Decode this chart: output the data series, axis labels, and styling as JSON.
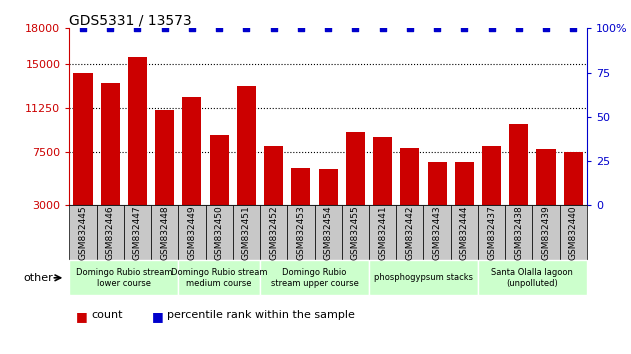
{
  "title": "GDS5331 / 13573",
  "categories": [
    "GSM832445",
    "GSM832446",
    "GSM832447",
    "GSM832448",
    "GSM832449",
    "GSM832450",
    "GSM832451",
    "GSM832452",
    "GSM832453",
    "GSM832454",
    "GSM832455",
    "GSM832441",
    "GSM832442",
    "GSM832443",
    "GSM832444",
    "GSM832437",
    "GSM832438",
    "GSM832439",
    "GSM832440"
  ],
  "bar_values": [
    14200,
    13400,
    15600,
    11100,
    12200,
    9000,
    13100,
    8000,
    6200,
    6100,
    9200,
    8800,
    7900,
    6700,
    6700,
    8000,
    9900,
    7800,
    7500
  ],
  "percentile_values": [
    100,
    100,
    100,
    100,
    100,
    100,
    100,
    100,
    100,
    100,
    100,
    100,
    100,
    100,
    100,
    100,
    100,
    100,
    100
  ],
  "ylim_left": [
    3000,
    18000
  ],
  "ylim_right": [
    0,
    100
  ],
  "yticks_left": [
    3000,
    7500,
    11250,
    15000,
    18000
  ],
  "yticks_right": [
    0,
    25,
    50,
    75,
    100
  ],
  "bar_color": "#cc0000",
  "percentile_color": "#0000cc",
  "background_color": "#ffffff",
  "tick_bg_color": "#c8c8c8",
  "groups": [
    {
      "label": "Domingo Rubio stream\nlower course",
      "start": 0,
      "end": 3,
      "color": "#ccffcc"
    },
    {
      "label": "Domingo Rubio stream\nmedium course",
      "start": 4,
      "end": 6,
      "color": "#ccffcc"
    },
    {
      "label": "Domingo Rubio\nstream upper course",
      "start": 7,
      "end": 10,
      "color": "#ccffcc"
    },
    {
      "label": "phosphogypsum stacks",
      "start": 11,
      "end": 14,
      "color": "#ccffcc"
    },
    {
      "label": "Santa Olalla lagoon\n(unpolluted)",
      "start": 15,
      "end": 18,
      "color": "#ccffcc"
    }
  ],
  "legend_count_label": "count",
  "legend_percentile_label": "percentile rank within the sample",
  "other_label": "other"
}
